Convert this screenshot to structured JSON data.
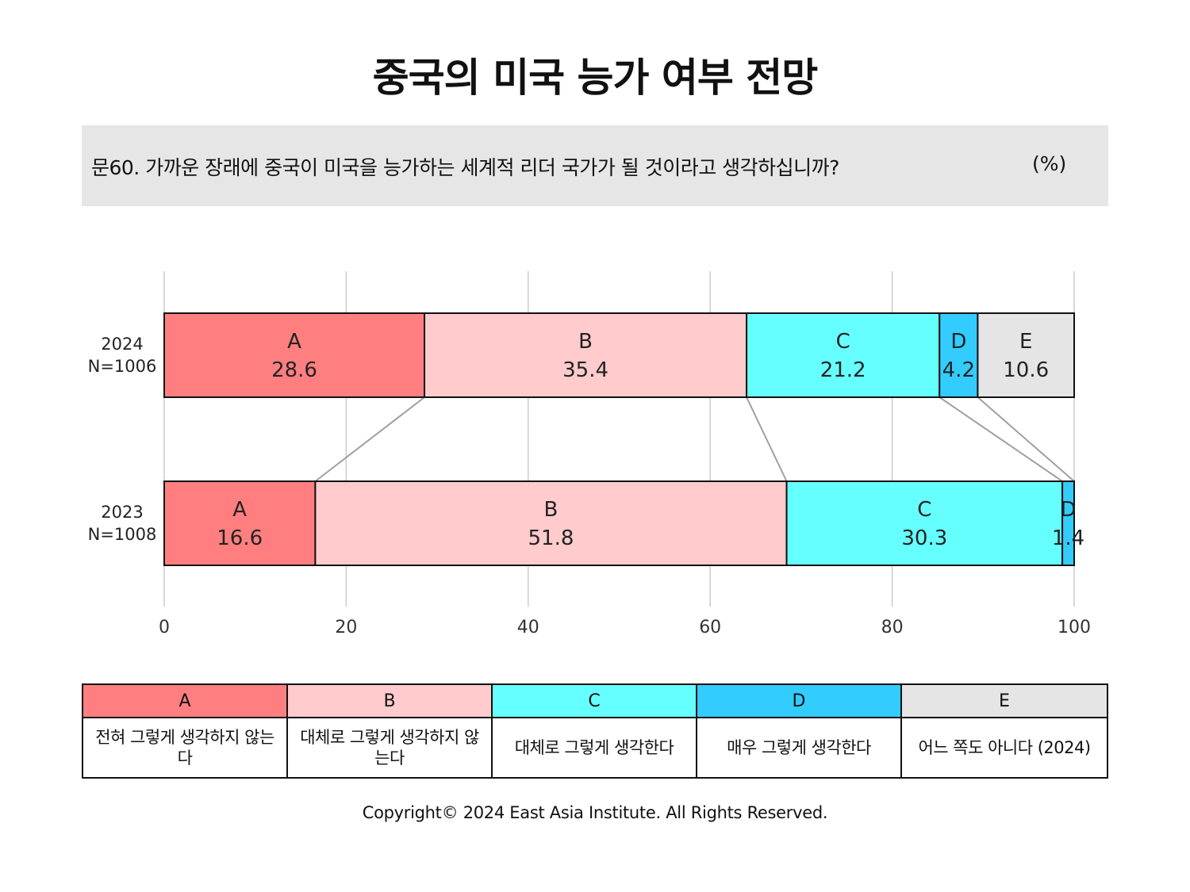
{
  "title": "중국의 미국 능가 여부 전망",
  "question": {
    "text": "문60. 가까운 장래에 중국이 미국을 능가하는 세계적 리더 국가가 될 것이라고 생각하십니까?",
    "unit": "(%)"
  },
  "colors": {
    "A": "#ff7f80",
    "B": "#ffcbcc",
    "C": "#66ffff",
    "D": "#33ccff",
    "E": "#e5e5e5",
    "grid": "#cccccc",
    "connector": "#a0a0a0"
  },
  "chart_data": {
    "type": "bar",
    "orientation": "horizontal",
    "stacked": true,
    "categories": [
      "2024",
      "2023"
    ],
    "category_sublabels": [
      "N=1006",
      "N=1008"
    ],
    "series": [
      {
        "name": "A",
        "values": [
          28.6,
          16.6
        ]
      },
      {
        "name": "B",
        "values": [
          35.4,
          51.8
        ]
      },
      {
        "name": "C",
        "values": [
          21.2,
          30.3
        ]
      },
      {
        "name": "D",
        "values": [
          4.2,
          1.4
        ]
      },
      {
        "name": "E",
        "values": [
          10.6,
          null
        ]
      }
    ],
    "xlim": [
      0,
      100
    ],
    "xticks": [
      0,
      20,
      40,
      60,
      80,
      100
    ],
    "grid": "vertical"
  },
  "legend": {
    "headers": [
      "A",
      "B",
      "C",
      "D",
      "E"
    ],
    "descriptions": [
      "전혀 그렇게 생각하지 않는다",
      "대체로 그렇게 생각하지 않는다",
      "대체로 그렇게 생각한다",
      "매우 그렇게 생각한다",
      "어느 쪽도 아니다 (2024)"
    ]
  },
  "copyright": "Copyright© 2024 East Asia Institute. All Rights Reserved."
}
